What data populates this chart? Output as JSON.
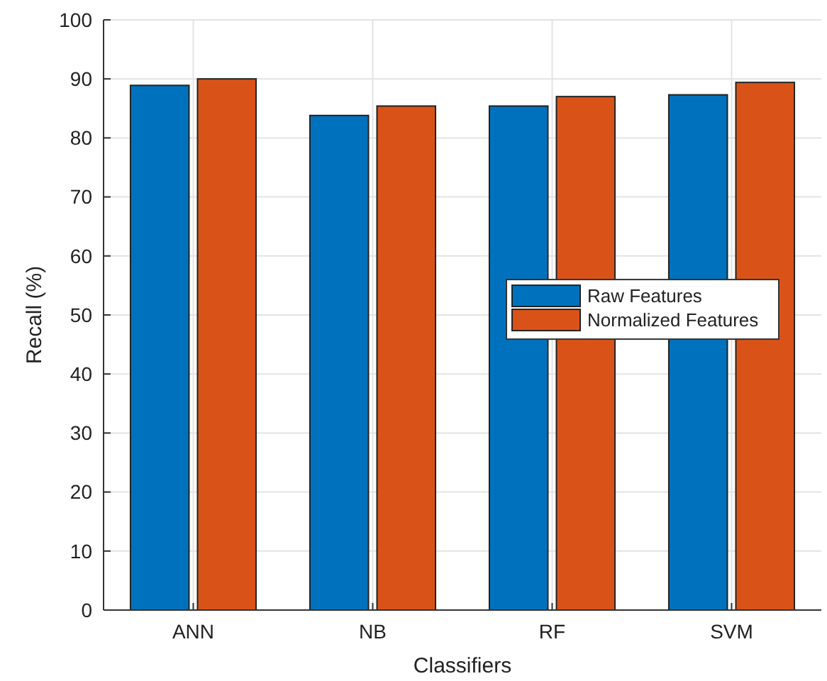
{
  "chart_data": {
    "type": "bar",
    "xlabel": "Classifiers",
    "ylabel": "Recall (%)",
    "categories": [
      "ANN",
      "NB",
      "RF",
      "SVM"
    ],
    "series": [
      {
        "name": "Raw Features",
        "color": "#0072bd",
        "values": [
          88.9,
          83.8,
          85.4,
          87.3
        ]
      },
      {
        "name": "Normalized Features",
        "color": "#d95319",
        "values": [
          90,
          85.4,
          87,
          89.4
        ]
      }
    ],
    "ylim": [
      0,
      100
    ],
    "yticks": [
      0,
      10,
      20,
      30,
      40,
      50,
      60,
      70,
      80,
      90,
      100
    ],
    "grid": true,
    "legend": "right"
  }
}
